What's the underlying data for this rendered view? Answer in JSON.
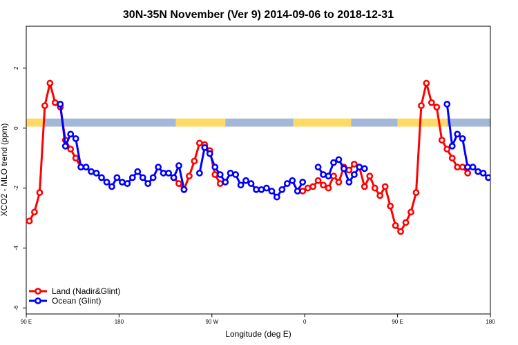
{
  "chart_data": {
    "type": "line",
    "title": "30N-35N November (Ver 9)   2014-09-06 to 2018-12-31",
    "xlabel": "Longitude (deg E)",
    "ylabel": "XCO2 - MLO trend (ppm)",
    "xlim": [
      90,
      540
    ],
    "ylim": [
      -6.2,
      3.4
    ],
    "x_ticks": [
      {
        "value": 90,
        "label": "90 E"
      },
      {
        "value": 180,
        "label": "180"
      },
      {
        "value": 270,
        "label": "90 W"
      },
      {
        "value": 360,
        "label": "0"
      },
      {
        "value": 450,
        "label": "90 E"
      },
      {
        "value": 540,
        "label": "180"
      }
    ],
    "y_ticks": [
      {
        "value": 2,
        "label": "2"
      },
      {
        "value": 0,
        "label": "0"
      },
      {
        "value": -2,
        "label": "-2"
      },
      {
        "value": -4,
        "label": "-4"
      },
      {
        "value": -6,
        "label": "-6"
      }
    ],
    "legend_position": "bottom-left",
    "surface_band": {
      "ymin": 0.05,
      "ymax": 0.32,
      "colors": {
        "land": "#ffd966",
        "ocean": "#a3b8d8"
      },
      "segments": [
        {
          "type": "land",
          "from": 90,
          "to": 108
        },
        {
          "type": "ocean",
          "from": 108,
          "to": 235
        },
        {
          "type": "land",
          "from": 235,
          "to": 283
        },
        {
          "type": "ocean",
          "from": 283,
          "to": 349
        },
        {
          "type": "land",
          "from": 349,
          "to": 405
        },
        {
          "type": "ocean",
          "from": 405,
          "to": 450
        },
        {
          "type": "land",
          "from": 450,
          "to": 498
        },
        {
          "type": "ocean",
          "from": 498,
          "to": 540
        }
      ]
    },
    "series": [
      {
        "name": "Land (Nadir&Glint)",
        "color": "#ff0000",
        "x": [
          93,
          98,
          103,
          108,
          113,
          118,
          123,
          128,
          133,
          138,
          143,
          233,
          238,
          243,
          248,
          253,
          258,
          263,
          268,
          273,
          278,
          358,
          363,
          368,
          373,
          378,
          383,
          388,
          393,
          398,
          403,
          408,
          413,
          418,
          423,
          428,
          433,
          438,
          443,
          448,
          453,
          458,
          463,
          468,
          473,
          478,
          483,
          488,
          493,
          498,
          503,
          508,
          513,
          518
        ],
        "y": [
          -3.1,
          -2.8,
          -2.15,
          0.75,
          1.5,
          0.85,
          0.7,
          -0.4,
          -0.7,
          -1.0,
          -1.3,
          -1.65,
          -1.85,
          -2.05,
          -1.6,
          -1.1,
          -0.5,
          -0.55,
          -0.75,
          -1.55,
          -1.85,
          -2.1,
          -2.0,
          -1.95,
          -1.75,
          -1.9,
          -2.0,
          -1.6,
          -1.8,
          -1.3,
          -1.4,
          -1.2,
          -1.3,
          -1.95,
          -1.6,
          -2.0,
          -2.25,
          -1.95,
          -2.6,
          -3.25,
          -3.45,
          -3.15,
          -2.8,
          -2.15,
          0.75,
          1.5,
          0.85,
          0.7,
          -0.4,
          -0.7,
          -1.0,
          -1.3,
          -1.3,
          -1.5
        ]
      },
      {
        "name": "Ocean (Glint)",
        "color": "#0000ff",
        "x": [
          123,
          128,
          133,
          138,
          143,
          148,
          153,
          158,
          163,
          168,
          173,
          178,
          183,
          188,
          193,
          198,
          203,
          208,
          213,
          218,
          223,
          228,
          233,
          238,
          243,
          258,
          263,
          268,
          273,
          278,
          283,
          288,
          293,
          298,
          303,
          308,
          313,
          318,
          323,
          328,
          333,
          338,
          343,
          348,
          353,
          358,
          373,
          378,
          383,
          388,
          393,
          398,
          403,
          408,
          413,
          418,
          498,
          503,
          508,
          513,
          518,
          523,
          528,
          533,
          538,
          543
        ],
        "y": [
          0.8,
          -0.6,
          -0.2,
          -0.35,
          -1.3,
          -1.3,
          -1.45,
          -1.5,
          -1.65,
          -1.8,
          -1.95,
          -1.65,
          -1.8,
          -1.85,
          -1.65,
          -1.45,
          -1.65,
          -1.85,
          -1.65,
          -1.3,
          -1.5,
          -1.5,
          -1.65,
          -1.25,
          -2.05,
          -1.5,
          -0.65,
          -0.85,
          -1.3,
          -1.55,
          -1.8,
          -1.5,
          -1.55,
          -1.9,
          -1.75,
          -1.85,
          -2.05,
          -2.05,
          -2.0,
          -2.1,
          -2.3,
          -2.05,
          -1.85,
          -1.75,
          -2.1,
          -1.8,
          -1.3,
          -1.55,
          -1.6,
          -1.15,
          -1.05,
          -1.35,
          -1.8,
          -1.55,
          -1.3,
          -1.35,
          0.8,
          -0.6,
          -0.2,
          -0.35,
          -1.3,
          -1.3,
          -1.45,
          -1.5,
          -1.65,
          -1.8
        ]
      }
    ]
  }
}
